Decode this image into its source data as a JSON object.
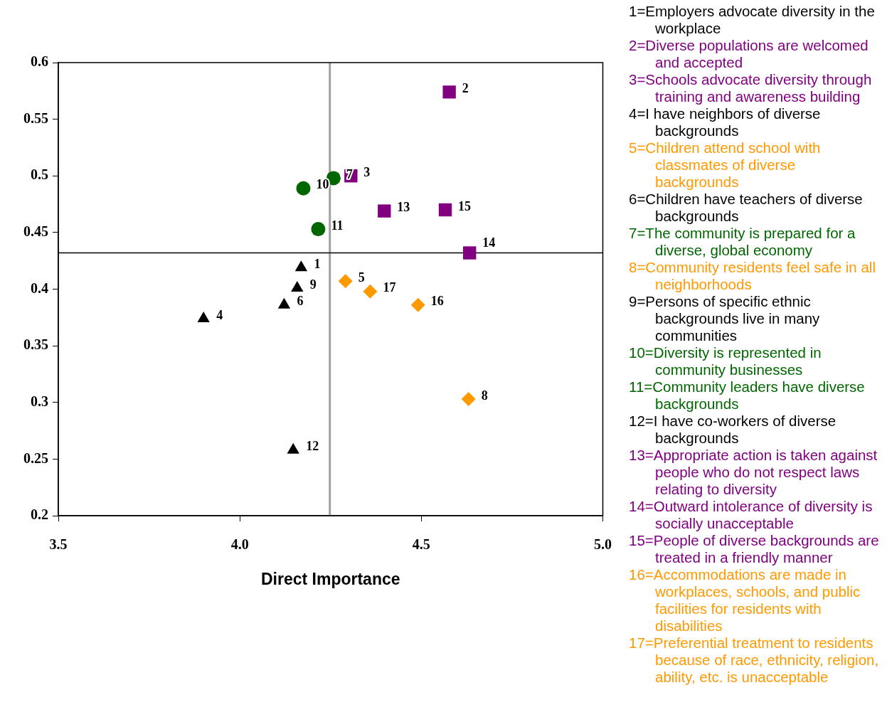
{
  "chart_data": {
    "type": "scatter",
    "xlabel": "Direct Importance",
    "xlim": [
      3.5,
      5.0
    ],
    "xticks": [
      3.5,
      {
        "value": 4,
        "label": "4.0"
      },
      4.5,
      {
        "value": 5,
        "label": "5.0"
      }
    ],
    "ylim": [
      0.2,
      0.6
    ],
    "yticks": [
      0.2,
      0.25,
      0.3,
      0.35,
      0.4,
      0.45,
      0.5,
      0.55,
      0.6
    ],
    "grid": false,
    "legend": false,
    "series": [
      {
        "color": "#000000",
        "marker": "triangle",
        "x": [
          4.169,
          3.9,
          4.122,
          4.158,
          4.147
        ],
        "values": [
          0.419,
          0.374,
          0.386,
          0.401,
          0.258
        ]
      },
      {
        "color": "#800080",
        "marker": "square",
        "x": [
          4.577,
          4.306,
          4.398,
          4.633,
          4.566
        ],
        "values": [
          0.574,
          0.5,
          0.469,
          0.432,
          0.47
        ]
      },
      {
        "color": "#ff9900",
        "marker": "diamond",
        "x": [
          4.291,
          4.63,
          4.491,
          4.359
        ],
        "values": [
          0.407,
          0.303,
          0.386,
          0.398
        ]
      },
      {
        "color": "#006600",
        "marker": "circle",
        "x": [
          4.258,
          4.175,
          4.216
        ],
        "values": [
          0.498,
          0.489,
          0.453
        ]
      }
    ],
    "ref_lines": [
      {
        "axis": "x",
        "value": 4.248,
        "color": "#a0a0a0"
      },
      {
        "axis": "y",
        "value": 0.432,
        "color": "#000000"
      }
    ],
    "annotations": [
      {
        "text": "1",
        "x": 4.169,
        "y": 0.419
      },
      {
        "text": "2",
        "x": 4.577,
        "y": 0.574
      },
      {
        "text": "3",
        "x": 4.306,
        "y": 0.5
      },
      {
        "text": "4",
        "x": 3.9,
        "y": 0.374
      },
      {
        "text": "5",
        "x": 4.291,
        "y": 0.407
      },
      {
        "text": "6",
        "x": 4.122,
        "y": 0.386
      },
      {
        "text": "7",
        "x": 4.258,
        "y": 0.498
      },
      {
        "text": "8",
        "x": 4.63,
        "y": 0.303
      },
      {
        "text": "9",
        "x": 4.158,
        "y": 0.401
      },
      {
        "text": "10",
        "x": 4.175,
        "y": 0.489
      },
      {
        "text": "11",
        "x": 4.216,
        "y": 0.453
      },
      {
        "text": "12",
        "x": 4.147,
        "y": 0.258
      },
      {
        "text": "13",
        "x": 4.398,
        "y": 0.469
      },
      {
        "text": "14",
        "x": 4.633,
        "y": 0.432
      },
      {
        "text": "15",
        "x": 4.566,
        "y": 0.47
      },
      {
        "text": "16",
        "x": 4.491,
        "y": 0.386
      },
      {
        "text": "17",
        "x": 4.359,
        "y": 0.398
      },
      "1=Employers advocate diversity in the workplace",
      "2=Diverse populations are welcomed and accepted",
      "3=Schools advocate diversity through training and awareness building",
      "4=I have neighbors of diverse backgrounds",
      "5=Children attend school with classmates of diverse backgrounds",
      "6=Children have teachers of diverse backgrounds",
      "7=The community is prepared for a diverse, global economy",
      "8=Community residents feel safe in all neighborhoods",
      "9=Persons of specific ethnic backgrounds live in many communities",
      "10=Diversity is represented in community businesses",
      "11=Community leaders have diverse backgrounds",
      "12=I have co-workers of diverse backgrounds",
      "13=Appropriate action is taken against people who do not respect laws relating to diversity",
      "14=Outward intolerance of diversity is socially unacceptable",
      "15=People of diverse backgrounds are treated in a friendly manner",
      "16=Accommodations are made in workplaces, schools, and public facilities for residents with disabilities",
      "17=Preferential treatment to residents because of race, ethnicity, religion, ability, etc. is unacceptable"
    ]
  }
}
